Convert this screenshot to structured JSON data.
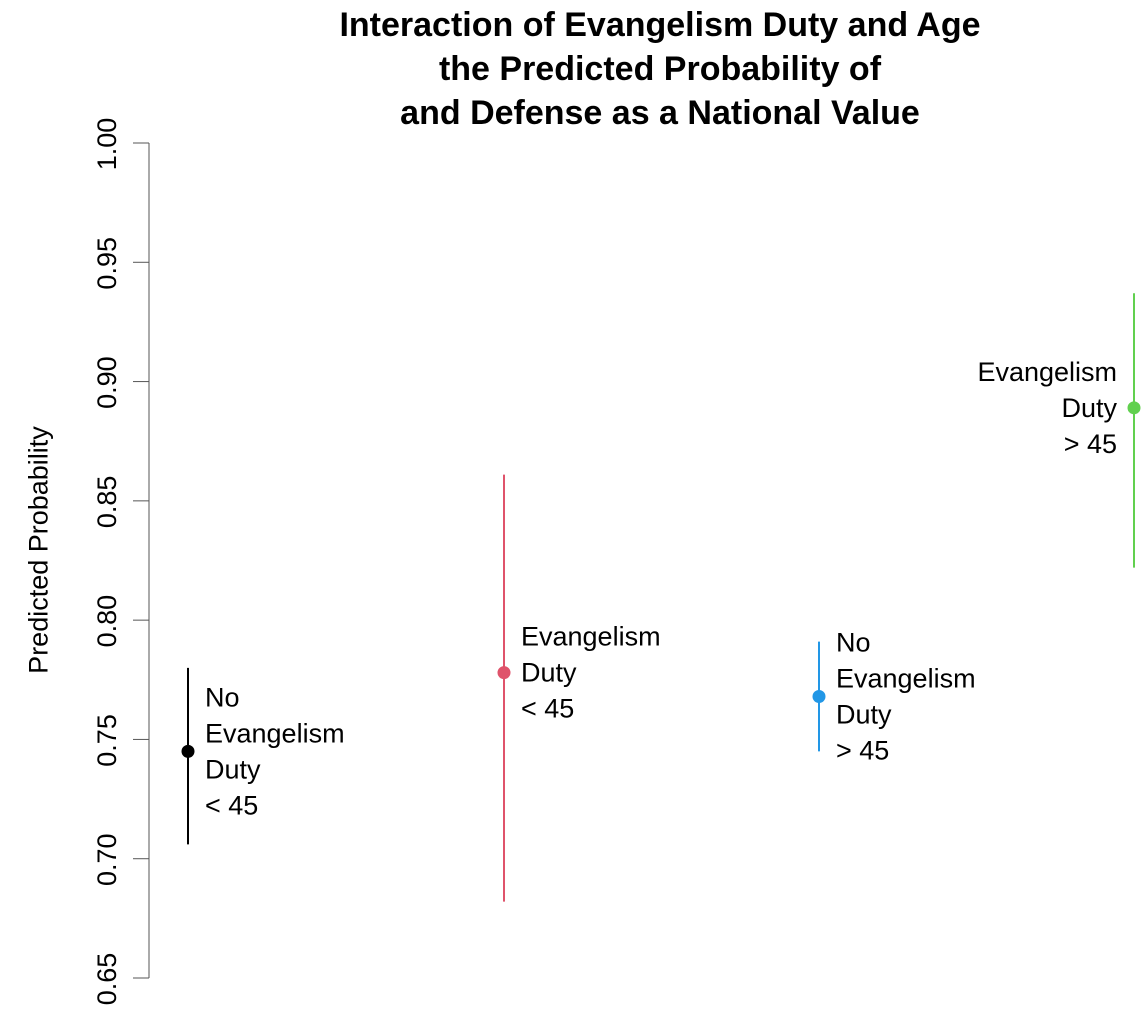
{
  "chart_data": {
    "type": "scatter",
    "title_lines": [
      "Interaction of Evangelism Duty and Age",
      "the Predicted Probability of",
      "and Defense as a National Value"
    ],
    "xlabel": "",
    "ylabel": "Predicted Probability",
    "ylim": [
      0.65,
      1.0
    ],
    "yticks": [
      "0.65",
      "0.70",
      "0.75",
      "0.80",
      "0.85",
      "0.90",
      "0.95",
      "1.00"
    ],
    "points": [
      {
        "label_lines": [
          "No",
          "Evangelism",
          "Duty",
          "< 45"
        ],
        "estimate": 0.745,
        "lower": 0.706,
        "upper": 0.78,
        "color": "#000000",
        "label_side": "right"
      },
      {
        "label_lines": [
          "Evangelism",
          "Duty",
          "< 45"
        ],
        "estimate": 0.778,
        "lower": 0.682,
        "upper": 0.861,
        "color": "#DF536B",
        "label_side": "right"
      },
      {
        "label_lines": [
          "No",
          "Evangelism",
          "Duty",
          "> 45"
        ],
        "estimate": 0.768,
        "lower": 0.745,
        "upper": 0.791,
        "color": "#2297E6",
        "label_side": "right"
      },
      {
        "label_lines": [
          "Evangelism",
          "Duty",
          "> 45"
        ],
        "estimate": 0.889,
        "lower": 0.822,
        "upper": 0.937,
        "color": "#61D04F",
        "label_side": "left"
      }
    ],
    "grid": false,
    "legend": "none"
  }
}
